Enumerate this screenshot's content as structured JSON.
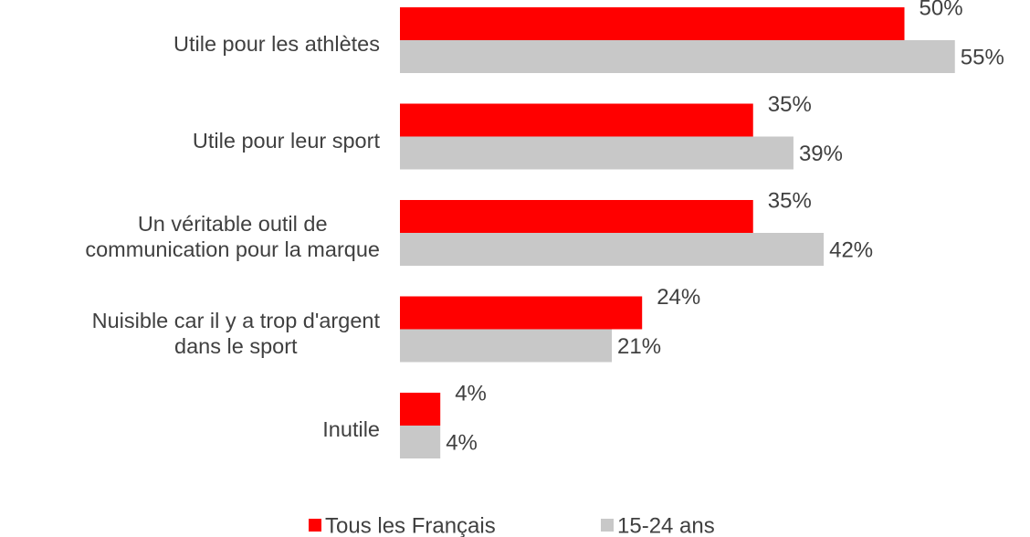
{
  "chart_data": {
    "type": "bar",
    "orientation": "horizontal",
    "categories": [
      "Utile pour les athlètes",
      "Utile pour leur sport",
      "Un véritable outil de\ncommunication pour la marque",
      "Nuisible car il y a trop d'argent\ndans le sport",
      "Inutile"
    ],
    "series": [
      {
        "name": "Tous les Français",
        "color": "#ff0000",
        "values": [
          50,
          35,
          35,
          24,
          4
        ],
        "value_labels": [
          "50%",
          "35%",
          "35%",
          "24%",
          "4%"
        ]
      },
      {
        "name": "15-24 ans",
        "color": "#c8c8c8",
        "values": [
          55,
          39,
          42,
          21,
          4
        ],
        "value_labels": [
          "55%",
          "39%",
          "42%",
          "21%",
          "4%"
        ]
      }
    ],
    "legend": "bottom"
  }
}
